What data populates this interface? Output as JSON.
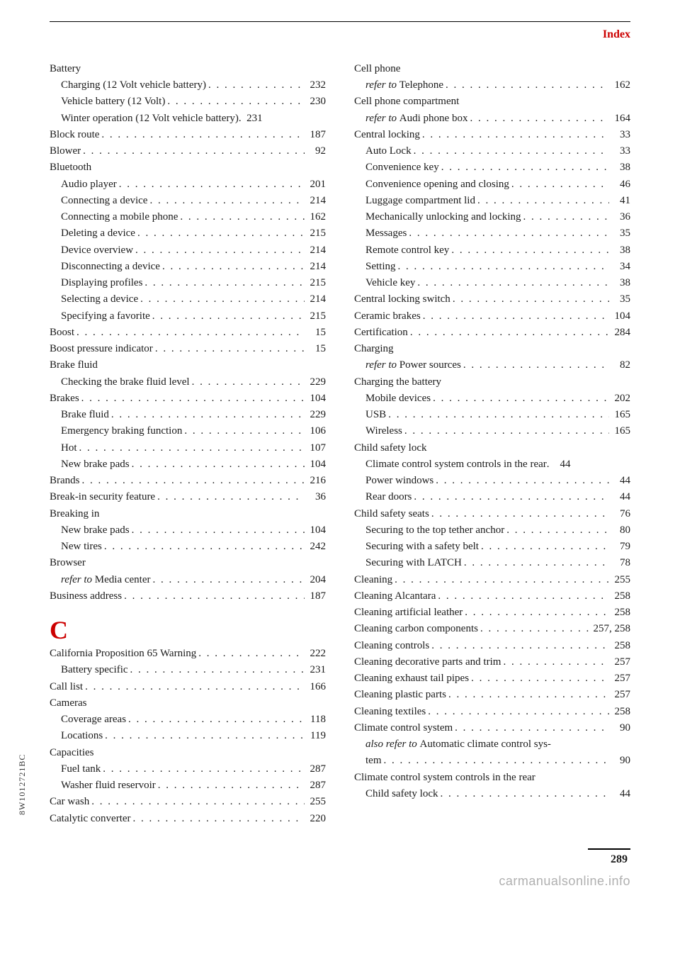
{
  "header": "Index",
  "side_code": "8W1012721BC",
  "page_number": "289",
  "watermark": "carmanualsonline.info",
  "section_letter": "C",
  "left": [
    {
      "type": "heading",
      "label": "Battery"
    },
    {
      "type": "sub",
      "label": "Charging (12 Volt vehicle battery)",
      "page": "232"
    },
    {
      "type": "sub",
      "label": "Vehicle battery (12 Volt)",
      "page": "230"
    },
    {
      "type": "sub",
      "label": "Winter operation (12 Volt vehicle battery)",
      "page": "231",
      "tight": true
    },
    {
      "type": "entry",
      "label": "Block route",
      "page": "187"
    },
    {
      "type": "entry",
      "label": "Blower",
      "page": "92"
    },
    {
      "type": "heading",
      "label": "Bluetooth"
    },
    {
      "type": "sub",
      "label": "Audio player",
      "page": "201"
    },
    {
      "type": "sub",
      "label": "Connecting a device",
      "page": "214"
    },
    {
      "type": "sub",
      "label": "Connecting a mobile phone",
      "page": "162"
    },
    {
      "type": "sub",
      "label": "Deleting a device",
      "page": "215"
    },
    {
      "type": "sub",
      "label": "Device overview",
      "page": "214"
    },
    {
      "type": "sub",
      "label": "Disconnecting a device",
      "page": "214"
    },
    {
      "type": "sub",
      "label": "Displaying profiles",
      "page": "215"
    },
    {
      "type": "sub",
      "label": "Selecting a device",
      "page": "214"
    },
    {
      "type": "sub",
      "label": "Specifying a favorite",
      "page": "215"
    },
    {
      "type": "entry",
      "label": "Boost",
      "page": "15"
    },
    {
      "type": "entry",
      "label": "Boost pressure indicator",
      "page": "15"
    },
    {
      "type": "heading",
      "label": "Brake fluid"
    },
    {
      "type": "sub",
      "label": "Checking the brake fluid level",
      "page": "229"
    },
    {
      "type": "entry",
      "label": "Brakes",
      "page": "104"
    },
    {
      "type": "sub",
      "label": "Brake fluid",
      "page": "229"
    },
    {
      "type": "sub",
      "label": "Emergency braking function",
      "page": "106"
    },
    {
      "type": "sub",
      "label": "Hot",
      "page": "107"
    },
    {
      "type": "sub",
      "label": "New brake pads",
      "page": "104"
    },
    {
      "type": "entry",
      "label": "Brands",
      "page": "216"
    },
    {
      "type": "entry",
      "label": "Break-in security feature",
      "page": "36"
    },
    {
      "type": "heading",
      "label": "Breaking in"
    },
    {
      "type": "sub",
      "label": "New brake pads",
      "page": "104"
    },
    {
      "type": "sub",
      "label": "New tires",
      "page": "242"
    },
    {
      "type": "heading",
      "label": "Browser"
    },
    {
      "type": "sub",
      "prefix": "refer to ",
      "label": "Media center",
      "page": "204"
    },
    {
      "type": "entry",
      "label": "Business address",
      "page": "187"
    },
    {
      "type": "letter"
    },
    {
      "type": "entry",
      "label": "California Proposition 65 Warning",
      "page": "222"
    },
    {
      "type": "sub",
      "label": "Battery specific",
      "page": "231"
    },
    {
      "type": "entry",
      "label": "Call list",
      "page": "166"
    },
    {
      "type": "heading",
      "label": "Cameras"
    },
    {
      "type": "sub",
      "label": "Coverage areas",
      "page": "118"
    },
    {
      "type": "sub",
      "label": "Locations",
      "page": "119"
    },
    {
      "type": "heading",
      "label": "Capacities"
    },
    {
      "type": "sub",
      "label": "Fuel tank",
      "page": "287"
    },
    {
      "type": "sub",
      "label": "Washer fluid reservoir",
      "page": "287"
    },
    {
      "type": "entry",
      "label": "Car wash",
      "page": "255"
    },
    {
      "type": "entry",
      "label": "Catalytic converter",
      "page": "220"
    }
  ],
  "right": [
    {
      "type": "heading",
      "label": "Cell phone"
    },
    {
      "type": "sub",
      "prefix": "refer to ",
      "label": "Telephone",
      "page": "162"
    },
    {
      "type": "heading",
      "label": "Cell phone compartment"
    },
    {
      "type": "sub",
      "prefix": "refer to ",
      "label": "Audi phone box",
      "page": "164"
    },
    {
      "type": "entry",
      "label": "Central locking",
      "page": "33"
    },
    {
      "type": "sub",
      "label": "Auto Lock",
      "page": "33"
    },
    {
      "type": "sub",
      "label": "Convenience key",
      "page": "38"
    },
    {
      "type": "sub",
      "label": "Convenience opening and closing",
      "page": "46"
    },
    {
      "type": "sub",
      "label": "Luggage compartment lid",
      "page": "41"
    },
    {
      "type": "sub",
      "label": "Mechanically unlocking and locking",
      "page": "36"
    },
    {
      "type": "sub",
      "label": "Messages",
      "page": "35"
    },
    {
      "type": "sub",
      "label": "Remote control key",
      "page": "38"
    },
    {
      "type": "sub",
      "label": "Setting",
      "page": "34"
    },
    {
      "type": "sub",
      "label": "Vehicle key",
      "page": "38"
    },
    {
      "type": "entry",
      "label": "Central locking switch",
      "page": "35"
    },
    {
      "type": "entry",
      "label": "Ceramic brakes",
      "page": "104"
    },
    {
      "type": "entry",
      "label": "Certification",
      "page": "284"
    },
    {
      "type": "heading",
      "label": "Charging"
    },
    {
      "type": "sub",
      "prefix": "refer to ",
      "label": "Power sources",
      "page": "82"
    },
    {
      "type": "heading",
      "label": "Charging the battery"
    },
    {
      "type": "sub",
      "label": "Mobile devices",
      "page": "202"
    },
    {
      "type": "sub",
      "label": "USB",
      "page": "165"
    },
    {
      "type": "sub",
      "label": "Wireless",
      "page": "165"
    },
    {
      "type": "heading",
      "label": "Child safety lock"
    },
    {
      "type": "sub",
      "label": "Climate control system controls in the rear",
      "page": "44",
      "tight": true
    },
    {
      "type": "sub",
      "label": "Power windows",
      "page": "44"
    },
    {
      "type": "sub",
      "label": "Rear doors",
      "page": "44"
    },
    {
      "type": "entry",
      "label": "Child safety seats",
      "page": "76"
    },
    {
      "type": "sub",
      "label": "Securing to the top tether anchor",
      "page": "80"
    },
    {
      "type": "sub",
      "label": "Securing with a safety belt",
      "page": "79"
    },
    {
      "type": "sub",
      "label": "Securing with LATCH",
      "page": "78"
    },
    {
      "type": "entry",
      "label": "Cleaning",
      "page": "255"
    },
    {
      "type": "entry",
      "label": "Cleaning Alcantara",
      "page": "258"
    },
    {
      "type": "entry",
      "label": "Cleaning artificial leather",
      "page": "258"
    },
    {
      "type": "entry",
      "label": "Cleaning carbon components",
      "page": "257, 258"
    },
    {
      "type": "entry",
      "label": "Cleaning controls",
      "page": "258"
    },
    {
      "type": "entry",
      "label": "Cleaning decorative parts and trim",
      "page": "257"
    },
    {
      "type": "entry",
      "label": "Cleaning exhaust tail pipes",
      "page": "257"
    },
    {
      "type": "entry",
      "label": "Cleaning plastic parts",
      "page": "257"
    },
    {
      "type": "entry",
      "label": "Cleaning textiles",
      "page": "258"
    },
    {
      "type": "entry",
      "label": "Climate control system",
      "page": "90"
    },
    {
      "type": "sub",
      "prefix": "also refer to ",
      "label": "Automatic climate control sys-",
      "noPage": true
    },
    {
      "type": "sub",
      "label": "tem",
      "page": "90"
    },
    {
      "type": "heading",
      "label": "Climate control system controls in the rear"
    },
    {
      "type": "sub",
      "label": "Child safety lock",
      "page": "44"
    }
  ]
}
